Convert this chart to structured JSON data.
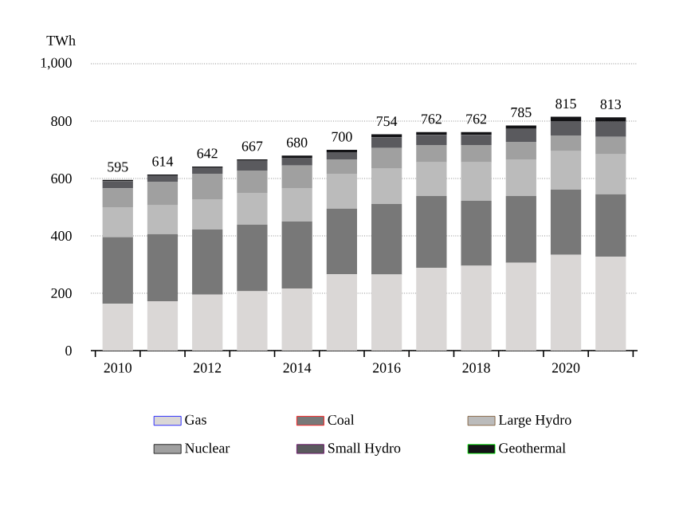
{
  "chart_data": {
    "type": "bar",
    "stacked": true,
    "ylabel": "TWh",
    "categories": [
      "2010",
      null,
      "2012",
      null,
      "2014",
      null,
      "2016",
      null,
      "2018",
      null,
      "2020",
      null
    ],
    "series": [
      {
        "name": "Gas",
        "color": "#dad7d6",
        "values": [
          163,
          172,
          195,
          207,
          217,
          266,
          265,
          289,
          296,
          306,
          334,
          328
        ]
      },
      {
        "name": "Coal",
        "color": "#787878",
        "values": [
          233,
          234,
          227,
          232,
          233,
          229,
          246,
          250,
          226,
          233,
          227,
          217
        ]
      },
      {
        "name": "Large Hydro",
        "color": "#bbbbbb",
        "values": [
          104,
          100,
          106,
          111,
          117,
          122,
          123,
          117,
          134,
          128,
          134,
          139
        ]
      },
      {
        "name": "Nuclear",
        "color": "#a0a0a0",
        "values": [
          65,
          83,
          89,
          78,
          78,
          50,
          72,
          61,
          61,
          61,
          55,
          61
        ]
      },
      {
        "name": "Small Hydro",
        "color": "#5a5a5e",
        "values": [
          25,
          20,
          20,
          34,
          27,
          25,
          38,
          35,
          35,
          45,
          50,
          53
        ]
      },
      {
        "name": "Geothermal",
        "color": "#131316",
        "values": [
          5,
          5,
          5,
          5,
          8,
          8,
          10,
          10,
          10,
          12,
          15,
          15
        ]
      }
    ],
    "totals": [
      "595",
      "614",
      "642",
      "667",
      "680",
      "700",
      "754",
      "762",
      "762",
      "785",
      "815",
      "813"
    ],
    "ylim": [
      0,
      1000
    ],
    "yticks": [
      0,
      200,
      400,
      600,
      800,
      {
        "value": 1000,
        "label": "1,000"
      }
    ],
    "grid": "y",
    "legend": "bottom"
  }
}
